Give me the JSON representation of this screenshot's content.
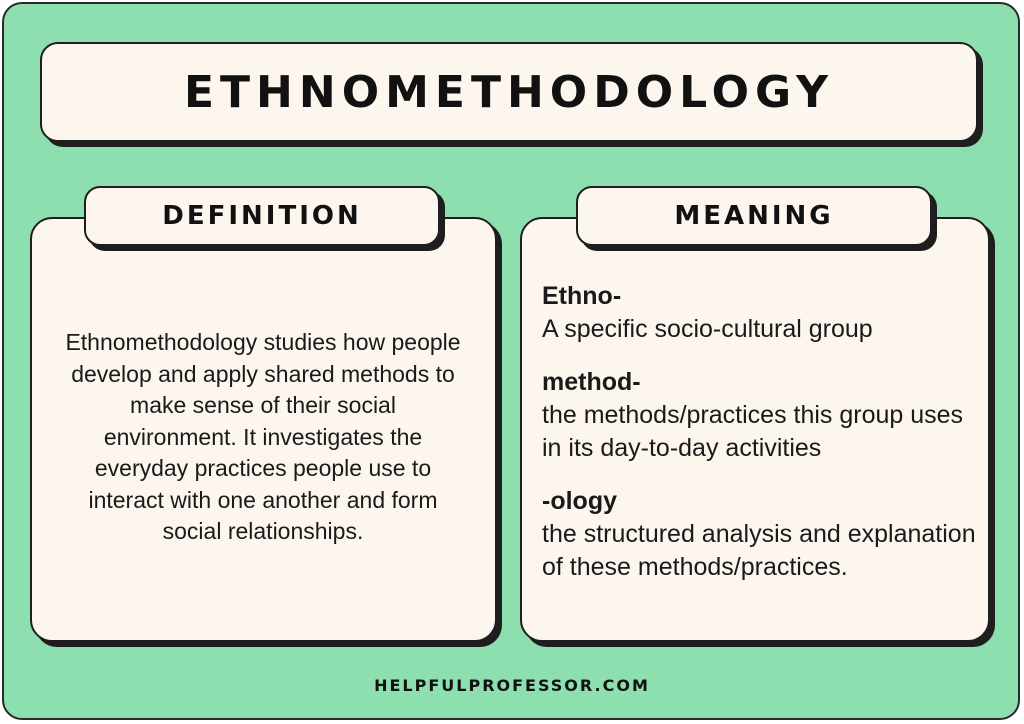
{
  "title": "ETHNOMETHODOLOGY",
  "definition": {
    "heading": "DEFINITION",
    "text": "Ethnomethodology studies how people develop and apply shared methods to make sense of their social environment. It investigates the everyday practices people use to interact with one another and form social relationships."
  },
  "meaning": {
    "heading": "MEANING",
    "items": [
      {
        "term": "Ethno-",
        "description": "A specific socio-cultural group"
      },
      {
        "term": "method-",
        "description": "the methods/practices this group uses in its day-to-day activities"
      },
      {
        "term": "-ology",
        "description": "the structured analysis and explanation of these methods/practices."
      }
    ]
  },
  "footer": "HELPFULPROFESSOR.COM",
  "colors": {
    "background": "#8ddfb0",
    "panel": "#fdf6ee",
    "ink": "#1e1e1e"
  }
}
